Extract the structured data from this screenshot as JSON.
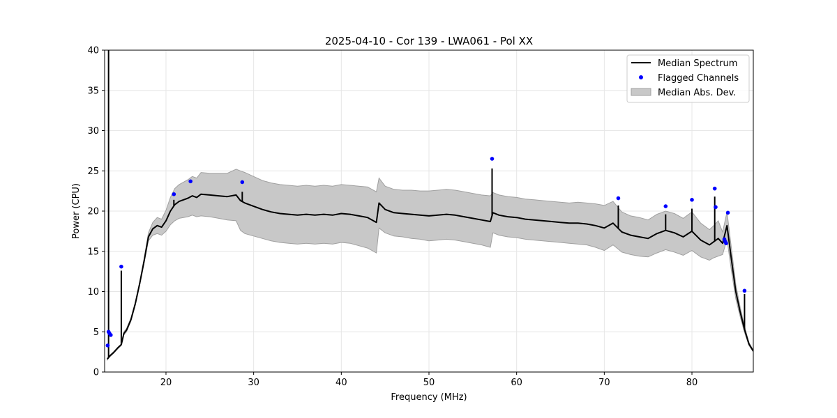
{
  "chart_data": {
    "type": "line",
    "title": "2025-04-10 - Cor 139 - LWA061 - Pol XX",
    "xlabel": "Frequency (MHz)",
    "ylabel": "Power (CPU)",
    "xlim": [
      13.0,
      87.0
    ],
    "ylim": [
      0,
      40
    ],
    "xticks": [
      20,
      30,
      40,
      50,
      60,
      70,
      80
    ],
    "yticks": [
      0,
      5,
      10,
      15,
      20,
      25,
      30,
      35,
      40
    ],
    "grid": true,
    "legend_position": "top-right",
    "legend": {
      "median": "Median Spectrum",
      "flagged": "Flagged Channels",
      "mad": "Median Abs. Dev."
    },
    "colors": {
      "median": "#000000",
      "flagged": "#0000ff",
      "band_fill": "#c8c8c8",
      "band_edge": "#a0a0a0"
    },
    "series": [
      {
        "name": "Median Spectrum",
        "x": [
          13.3,
          13.6,
          14.0,
          14.5,
          14.9,
          15.2,
          15.5,
          16.0,
          16.5,
          17.0,
          17.5,
          18.0,
          18.5,
          19.0,
          19.5,
          20.0,
          20.5,
          21.0,
          21.5,
          22.0,
          22.5,
          23.0,
          23.5,
          24.0,
          25.0,
          26.0,
          27.0,
          28.0,
          28.5,
          29.0,
          30.0,
          31.0,
          32.0,
          33.0,
          34.0,
          35.0,
          36.0,
          37.0,
          38.0,
          39.0,
          40.0,
          41.0,
          42.0,
          43.0,
          44.0,
          44.3,
          45.0,
          46.0,
          47.0,
          48.0,
          49.0,
          50.0,
          51.0,
          52.0,
          53.0,
          54.0,
          55.0,
          56.0,
          57.0,
          57.3,
          58.0,
          59.0,
          60.0,
          61.0,
          62.0,
          63.0,
          64.0,
          65.0,
          66.0,
          67.0,
          68.0,
          69.0,
          70.0,
          71.0,
          72.0,
          73.0,
          74.0,
          75.0,
          76.0,
          77.0,
          78.0,
          79.0,
          80.0,
          81.0,
          82.0,
          82.5,
          83.0,
          83.5,
          84.0,
          84.5,
          85.0,
          85.5,
          86.0,
          86.5,
          87.0
        ],
        "y": [
          1.6,
          2.0,
          2.4,
          3.0,
          3.4,
          4.8,
          5.2,
          6.5,
          8.5,
          11.0,
          13.8,
          16.8,
          17.8,
          18.2,
          18.0,
          18.8,
          20.0,
          20.8,
          21.2,
          21.4,
          21.6,
          21.9,
          21.7,
          22.1,
          22.0,
          21.9,
          21.8,
          22.0,
          21.3,
          21.0,
          20.6,
          20.2,
          19.9,
          19.7,
          19.6,
          19.5,
          19.6,
          19.5,
          19.6,
          19.5,
          19.7,
          19.6,
          19.4,
          19.2,
          18.6,
          21.0,
          20.2,
          19.8,
          19.7,
          19.6,
          19.5,
          19.4,
          19.5,
          19.6,
          19.5,
          19.3,
          19.1,
          18.9,
          18.7,
          19.8,
          19.5,
          19.3,
          19.2,
          19.0,
          18.9,
          18.8,
          18.7,
          18.6,
          18.5,
          18.5,
          18.4,
          18.2,
          17.9,
          18.5,
          17.4,
          17.0,
          16.8,
          16.6,
          17.2,
          17.6,
          17.3,
          16.8,
          17.5,
          16.4,
          15.8,
          16.2,
          16.6,
          16.0,
          18.2,
          14.0,
          10.0,
          7.5,
          5.3,
          3.5,
          2.6
        ]
      },
      {
        "name": "Median Abs. Dev.",
        "x": [
          13.3,
          13.6,
          14.0,
          14.5,
          14.9,
          15.2,
          15.5,
          16.0,
          16.5,
          17.0,
          17.5,
          18.0,
          18.5,
          19.0,
          19.5,
          20.0,
          20.5,
          21.0,
          21.5,
          22.0,
          22.5,
          23.0,
          23.5,
          24.0,
          25.0,
          26.0,
          27.0,
          28.0,
          28.5,
          29.0,
          30.0,
          31.0,
          32.0,
          33.0,
          34.0,
          35.0,
          36.0,
          37.0,
          38.0,
          39.0,
          40.0,
          41.0,
          42.0,
          43.0,
          44.0,
          44.3,
          45.0,
          46.0,
          47.0,
          48.0,
          49.0,
          50.0,
          51.0,
          52.0,
          53.0,
          54.0,
          55.0,
          56.0,
          57.0,
          57.3,
          58.0,
          59.0,
          60.0,
          61.0,
          62.0,
          63.0,
          64.0,
          65.0,
          66.0,
          67.0,
          68.0,
          69.0,
          70.0,
          71.0,
          72.0,
          73.0,
          74.0,
          75.0,
          76.0,
          77.0,
          78.0,
          79.0,
          80.0,
          81.0,
          82.0,
          82.5,
          83.0,
          83.5,
          84.0,
          84.5,
          85.0,
          85.5,
          86.0,
          86.5,
          87.0
        ],
        "lower": [
          1.5,
          1.9,
          2.3,
          2.9,
          3.3,
          4.6,
          5.0,
          6.3,
          8.3,
          10.8,
          13.5,
          16.3,
          17.0,
          17.2,
          17.0,
          17.5,
          18.3,
          18.8,
          19.1,
          19.2,
          19.3,
          19.5,
          19.3,
          19.4,
          19.3,
          19.1,
          18.9,
          18.8,
          17.6,
          17.2,
          16.9,
          16.6,
          16.3,
          16.1,
          16.0,
          15.9,
          16.0,
          15.9,
          16.0,
          15.9,
          16.1,
          16.0,
          15.7,
          15.4,
          14.8,
          17.9,
          17.3,
          16.9,
          16.8,
          16.6,
          16.5,
          16.3,
          16.4,
          16.5,
          16.4,
          16.2,
          16.0,
          15.8,
          15.5,
          17.3,
          17.0,
          16.8,
          16.7,
          16.5,
          16.4,
          16.3,
          16.2,
          16.1,
          16.0,
          15.9,
          15.8,
          15.5,
          15.1,
          15.8,
          14.9,
          14.6,
          14.4,
          14.3,
          14.8,
          15.2,
          14.9,
          14.5,
          15.1,
          14.3,
          13.9,
          14.2,
          14.4,
          14.6,
          16.5,
          12.6,
          9.1,
          6.9,
          4.9,
          3.3,
          2.5
        ],
        "upper": [
          1.7,
          2.1,
          2.5,
          3.1,
          3.5,
          5.0,
          5.4,
          6.7,
          8.7,
          11.2,
          14.1,
          17.3,
          18.6,
          19.2,
          19.0,
          20.1,
          21.7,
          22.8,
          23.3,
          23.6,
          23.9,
          24.3,
          24.1,
          24.8,
          24.7,
          24.7,
          24.7,
          25.2,
          25.0,
          24.8,
          24.3,
          23.8,
          23.5,
          23.3,
          23.2,
          23.1,
          23.2,
          23.1,
          23.2,
          23.1,
          23.3,
          23.2,
          23.1,
          23.0,
          22.4,
          24.1,
          23.1,
          22.7,
          22.6,
          22.6,
          22.5,
          22.5,
          22.6,
          22.7,
          22.6,
          22.4,
          22.2,
          22.0,
          21.9,
          22.3,
          22.0,
          21.8,
          21.7,
          21.5,
          21.4,
          21.3,
          21.2,
          21.1,
          21.0,
          21.1,
          21.0,
          20.9,
          20.7,
          21.2,
          19.9,
          19.4,
          19.2,
          18.9,
          19.6,
          20.0,
          19.7,
          19.1,
          19.9,
          18.5,
          17.7,
          18.2,
          18.8,
          17.4,
          19.9,
          15.4,
          10.9,
          8.1,
          5.7,
          3.7,
          2.7
        ]
      },
      {
        "name": "Flagged Channels",
        "x": [
          13.35,
          13.45,
          13.55,
          13.7,
          14.9,
          20.9,
          22.8,
          28.7,
          57.2,
          71.6,
          77.0,
          80.0,
          82.6,
          82.7,
          83.7,
          83.8,
          83.9,
          84.1,
          86.0
        ],
        "y": [
          3.3,
          5.0,
          4.8,
          4.6,
          13.1,
          22.1,
          23.7,
          23.6,
          26.5,
          21.6,
          20.6,
          21.4,
          22.8,
          20.5,
          16.5,
          16.2,
          16.0,
          19.8,
          10.1
        ]
      }
    ],
    "spikes": [
      {
        "x": 13.45,
        "y": 40.0
      },
      {
        "x": 14.9,
        "y": 12.6
      },
      {
        "x": 20.9,
        "y": 21.4
      },
      {
        "x": 28.7,
        "y": 22.4
      },
      {
        "x": 57.2,
        "y": 25.3
      },
      {
        "x": 71.6,
        "y": 20.7
      },
      {
        "x": 77.0,
        "y": 19.6
      },
      {
        "x": 80.0,
        "y": 20.3
      },
      {
        "x": 82.6,
        "y": 21.8
      },
      {
        "x": 86.0,
        "y": 9.7
      }
    ]
  }
}
